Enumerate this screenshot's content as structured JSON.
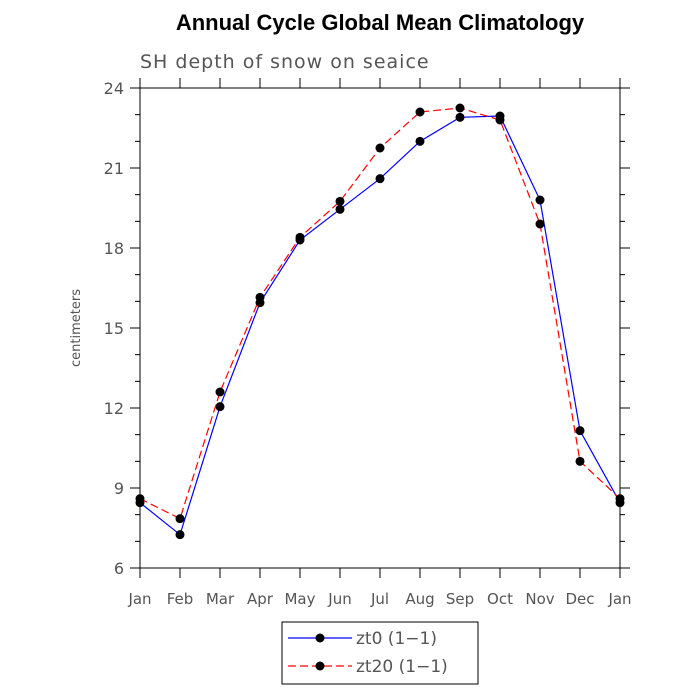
{
  "chart_data": {
    "type": "line",
    "title": "Annual Cycle Global Mean Climatology",
    "subtitle": "SH depth of snow on seaice",
    "xlabel": "",
    "ylabel": "centimeters",
    "categories": [
      "Jan",
      "Feb",
      "Mar",
      "Apr",
      "May",
      "Jun",
      "Jul",
      "Aug",
      "Sep",
      "Oct",
      "Nov",
      "Dec",
      "Jan"
    ],
    "ylim": [
      6,
      24
    ],
    "yticks": [
      "6",
      "9",
      "12",
      "15",
      "18",
      "21",
      "24"
    ],
    "grid": false,
    "legend_position": "bottom-center",
    "series": [
      {
        "name": "zt0 (1−1)",
        "color": "#0000ff",
        "line_style": "solid",
        "values": [
          8.45,
          7.25,
          12.05,
          15.95,
          18.3,
          19.45,
          20.6,
          22.0,
          22.9,
          22.95,
          19.8,
          11.15,
          8.45
        ]
      },
      {
        "name": "zt20 (1−1)",
        "color": "#ff0000",
        "line_style": "dashed",
        "values": [
          8.6,
          7.85,
          12.6,
          16.15,
          18.4,
          19.75,
          21.75,
          23.1,
          23.25,
          22.8,
          18.9,
          10.0,
          8.6
        ]
      }
    ]
  }
}
